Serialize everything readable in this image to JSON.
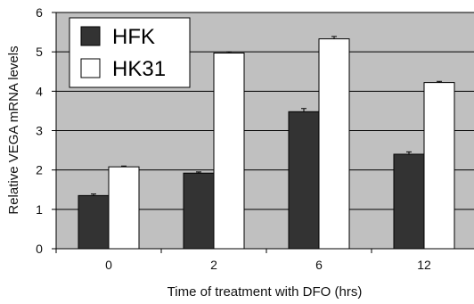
{
  "chart_data": {
    "type": "bar",
    "title": "",
    "xlabel": "Time of treatment with DFO (hrs)",
    "ylabel": "Relative VEGA mRNA levels",
    "categories": [
      "0",
      "2",
      "6",
      "12"
    ],
    "ylim": [
      0,
      6
    ],
    "yticks": [
      "0",
      "1",
      "2",
      "3",
      "4",
      "5",
      "6"
    ],
    "grid": true,
    "legend_position": "top-left",
    "series": [
      {
        "name": "HFK",
        "values": [
          1.35,
          1.92,
          3.48,
          2.4
        ],
        "errors": [
          0.04,
          0.03,
          0.08,
          0.06
        ],
        "color": "#333333"
      },
      {
        "name": "HK31",
        "values": [
          2.08,
          4.97,
          5.33,
          4.22
        ],
        "errors": [
          0.02,
          0.03,
          0.06,
          0.03
        ],
        "color": "#ffffff"
      }
    ],
    "colors": {
      "plot_background": "#c0c0c0",
      "gridline": "#000000",
      "bar_outline": "#000000"
    }
  }
}
